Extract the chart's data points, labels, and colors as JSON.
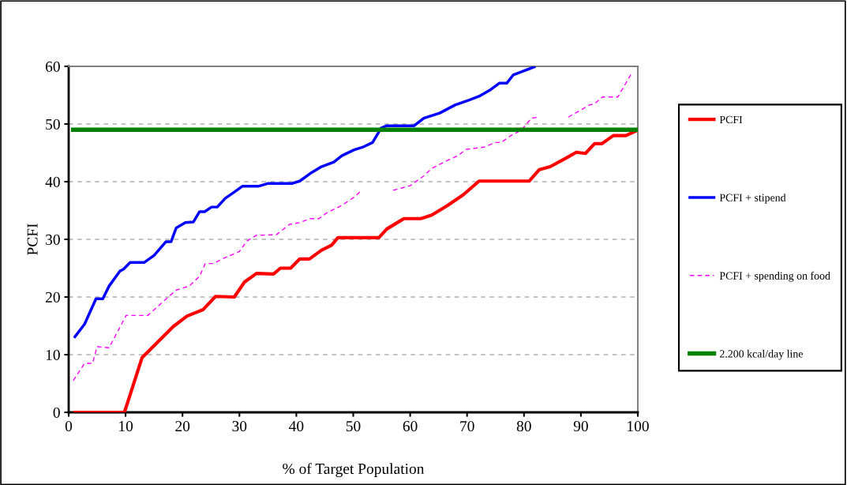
{
  "chart_data": {
    "type": "line",
    "xlabel": "% of Target Population",
    "ylabel": "PCFI",
    "xlim": [
      0,
      100
    ],
    "xticks": [
      0,
      10,
      20,
      30,
      40,
      50,
      60,
      70,
      80,
      90,
      100
    ],
    "ylim": [
      0,
      60
    ],
    "yticks": [
      0,
      10,
      20,
      30,
      40,
      50,
      60
    ],
    "grid": "y",
    "legend": "right",
    "series": [
      {
        "name": "PCFI",
        "color": "#ff0000",
        "line_style": "solid",
        "x": [
          1.1,
          9.8,
          12.9,
          18.4,
          20.8,
          23.6,
          25.8,
          29.1,
          30.9,
          33,
          36,
          37.2,
          39,
          40.6,
          42.3,
          44.4,
          46.2,
          47.3,
          49,
          54.5,
          55.9,
          58.9,
          61.9,
          63.8,
          66.6,
          69.3,
          72.1,
          80.9,
          82.7,
          84.6,
          87.4,
          89.2,
          90.8,
          92.4,
          93.7,
          95.7,
          97.9,
          99.9
        ],
        "values": [
          0,
          0,
          9.5,
          14.9,
          16.7,
          17.8,
          20.1,
          20,
          22.6,
          24.1,
          24,
          25,
          25,
          26.6,
          26.6,
          28.1,
          29,
          30.3,
          30.3,
          30.3,
          31.8,
          33.6,
          33.6,
          34.2,
          35.9,
          37.7,
          40.1,
          40.1,
          42.1,
          42.6,
          44.1,
          45.1,
          44.9,
          46.6,
          46.6,
          48,
          48,
          48.9
        ]
      },
      {
        "name": "PCFI + stipend",
        "color": "#0000ff",
        "line_style": "solid",
        "x": [
          1.1,
          2.8,
          4.8,
          6,
          7.1,
          9,
          9.6,
          10.8,
          13.3,
          15,
          17.1,
          18,
          18.9,
          20.5,
          21.9,
          23,
          23.9,
          25.1,
          26.1,
          27.5,
          29.1,
          30.5,
          33.3,
          35.1,
          39.3,
          40.6,
          42.4,
          44.4,
          46.6,
          48,
          50.1,
          51.7,
          53.4,
          54.9,
          55.9,
          60.7,
          62.4,
          65.2,
          67.9,
          70.2,
          72.1,
          74.2,
          75.7,
          77,
          78.1,
          81.8
        ],
        "values": [
          13.1,
          15.3,
          19.7,
          19.7,
          21.9,
          24.5,
          24.8,
          26,
          26,
          27.2,
          29.6,
          29.6,
          32,
          32.9,
          33,
          34.8,
          34.8,
          35.6,
          35.6,
          37.1,
          38.2,
          39.2,
          39.2,
          39.7,
          39.7,
          40.1,
          41.4,
          42.6,
          43.4,
          44.5,
          45.5,
          46,
          46.8,
          49.3,
          49.7,
          49.7,
          51,
          51.9,
          53.3,
          54.1,
          54.8,
          56,
          57.1,
          57.1,
          58.5,
          59.9
        ]
      },
      {
        "name": "PCFI + spending on food",
        "color": "#ff00ff",
        "line_style": "dashed",
        "x": [
          0.8,
          2.8,
          4.2,
          5,
          7.1,
          10.1,
          13.9,
          16.6,
          18.9,
          21.2,
          23,
          24,
          25.4,
          27.2,
          30,
          31.3,
          33,
          36.5,
          38.8,
          40.6,
          42.4,
          44,
          45.2,
          48,
          50.3,
          51.3,
          54,
          57,
          60,
          62.4,
          63.8,
          66.6,
          68.4,
          69.8,
          73,
          74.9,
          76,
          77.7,
          79.5,
          81.3,
          82.5,
          85,
          87.8,
          89.6,
          91.5,
          92.4,
          93.8,
          96.5,
          97.5,
          98.9
        ],
        "values": [
          5.5,
          8.5,
          8.5,
          11.4,
          11.2,
          16.8,
          16.8,
          19.2,
          21.2,
          21.9,
          23.6,
          25.8,
          25.8,
          26.7,
          27.9,
          29.7,
          30.7,
          30.8,
          32.6,
          32.9,
          33.6,
          33.6,
          34.5,
          35.9,
          37.4,
          38.4,
          null,
          38.5,
          39.3,
          41,
          42.3,
          43.7,
          44.5,
          45.6,
          46,
          46.8,
          46.8,
          48,
          48.9,
          51,
          51.2,
          null,
          51.2,
          52.2,
          53.3,
          53.5,
          54.7,
          54.7,
          56.4,
          58.8
        ]
      },
      {
        "name": "2.200 kcal/day line",
        "color": "#008000",
        "line_style": "solid",
        "x": [
          0.8,
          100
        ],
        "values": [
          49,
          49
        ]
      }
    ]
  }
}
